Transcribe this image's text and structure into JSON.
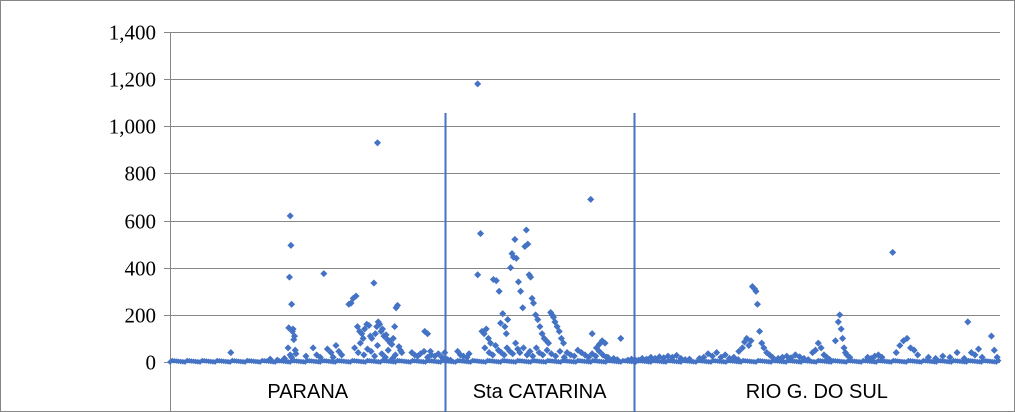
{
  "chart_data": {
    "type": "scatter",
    "title": "",
    "xlabel": "",
    "ylabel": "",
    "ylim": [
      0,
      1400
    ],
    "y_ticks": [
      0,
      200,
      400,
      600,
      800,
      1000,
      1200,
      1400
    ],
    "y_tick_labels": [
      "0",
      "200",
      "400",
      "600",
      "800",
      "1,000",
      "1,200",
      "1,400"
    ],
    "grid": "horizontal",
    "legend": "none",
    "marker_color": "#4472C4",
    "divider_color": "#4472C4",
    "x_count": 1160,
    "regions": [
      {
        "label": "PARANA",
        "start": 0,
        "end": 385
      },
      {
        "label": "Sta CATARINA",
        "start": 385,
        "end": 648
      },
      {
        "label": "RIO G. DO SUL",
        "start": 648,
        "end": 1160
      }
    ],
    "dividers": [
      385,
      648
    ],
    "points": [
      [
        168,
        620
      ],
      [
        169,
        495
      ],
      [
        167,
        360
      ],
      [
        170,
        245
      ],
      [
        166,
        145
      ],
      [
        172,
        140
      ],
      [
        171,
        130
      ],
      [
        174,
        110
      ],
      [
        173,
        95
      ],
      [
        165,
        60
      ],
      [
        175,
        50
      ],
      [
        176,
        35
      ],
      [
        168,
        30
      ],
      [
        170,
        20
      ],
      [
        85,
        40
      ],
      [
        140,
        12
      ],
      [
        150,
        8
      ],
      [
        160,
        15
      ],
      [
        215,
        375
      ],
      [
        200,
        60
      ],
      [
        205,
        30
      ],
      [
        190,
        25
      ],
      [
        210,
        20
      ],
      [
        220,
        55
      ],
      [
        225,
        40
      ],
      [
        228,
        20
      ],
      [
        232,
        70
      ],
      [
        236,
        45
      ],
      [
        240,
        30
      ],
      [
        250,
        245
      ],
      [
        253,
        250
      ],
      [
        256,
        270
      ],
      [
        260,
        280
      ],
      [
        262,
        150
      ],
      [
        265,
        130
      ],
      [
        268,
        120
      ],
      [
        270,
        100
      ],
      [
        272,
        140
      ],
      [
        275,
        160
      ],
      [
        278,
        155
      ],
      [
        280,
        110
      ],
      [
        282,
        100
      ],
      [
        285,
        335
      ],
      [
        287,
        120
      ],
      [
        289,
        150
      ],
      [
        291,
        170
      ],
      [
        293,
        160
      ],
      [
        295,
        130
      ],
      [
        297,
        140
      ],
      [
        299,
        110
      ],
      [
        302,
        115
      ],
      [
        304,
        95
      ],
      [
        306,
        90
      ],
      [
        308,
        80
      ],
      [
        310,
        75
      ],
      [
        312,
        100
      ],
      [
        314,
        150
      ],
      [
        316,
        230
      ],
      [
        318,
        240
      ],
      [
        320,
        65
      ],
      [
        322,
        50
      ],
      [
        324,
        40
      ],
      [
        258,
        60
      ],
      [
        263,
        40
      ],
      [
        266,
        80
      ],
      [
        271,
        30
      ],
      [
        276,
        55
      ],
      [
        281,
        45
      ],
      [
        286,
        25
      ],
      [
        290,
        70
      ],
      [
        296,
        35
      ],
      [
        301,
        20
      ],
      [
        305,
        50
      ],
      [
        311,
        15
      ],
      [
        315,
        30
      ],
      [
        338,
        40
      ],
      [
        342,
        30
      ],
      [
        346,
        25
      ],
      [
        350,
        35
      ],
      [
        355,
        45
      ],
      [
        360,
        20
      ],
      [
        365,
        30
      ],
      [
        370,
        25
      ],
      [
        375,
        35
      ],
      [
        380,
        20
      ],
      [
        384,
        40
      ],
      [
        290,
        930
      ],
      [
        356,
        130
      ],
      [
        360,
        120
      ],
      [
        364,
        45
      ],
      [
        402,
        45
      ],
      [
        406,
        30
      ],
      [
        410,
        25
      ],
      [
        415,
        20
      ],
      [
        418,
        35
      ],
      [
        385,
        15
      ],
      [
        388,
        10
      ],
      [
        392,
        8
      ],
      [
        430,
        1180
      ],
      [
        430,
        370
      ],
      [
        434,
        545
      ],
      [
        436,
        130
      ],
      [
        439,
        120
      ],
      [
        442,
        140
      ],
      [
        445,
        100
      ],
      [
        448,
        80
      ],
      [
        452,
        350
      ],
      [
        456,
        345
      ],
      [
        460,
        300
      ],
      [
        462,
        165
      ],
      [
        465,
        205
      ],
      [
        468,
        150
      ],
      [
        470,
        120
      ],
      [
        472,
        180
      ],
      [
        476,
        400
      ],
      [
        478,
        460
      ],
      [
        480,
        445
      ],
      [
        482,
        520
      ],
      [
        484,
        440
      ],
      [
        487,
        340
      ],
      [
        490,
        300
      ],
      [
        493,
        230
      ],
      [
        496,
        490
      ],
      [
        498,
        560
      ],
      [
        500,
        500
      ],
      [
        502,
        370
      ],
      [
        504,
        360
      ],
      [
        506,
        270
      ],
      [
        508,
        250
      ],
      [
        511,
        200
      ],
      [
        514,
        180
      ],
      [
        517,
        150
      ],
      [
        520,
        120
      ],
      [
        523,
        100
      ],
      [
        526,
        90
      ],
      [
        529,
        80
      ],
      [
        532,
        210
      ],
      [
        534,
        200
      ],
      [
        536,
        190
      ],
      [
        538,
        170
      ],
      [
        541,
        150
      ],
      [
        544,
        130
      ],
      [
        547,
        100
      ],
      [
        550,
        80
      ],
      [
        440,
        60
      ],
      [
        446,
        40
      ],
      [
        451,
        30
      ],
      [
        455,
        70
      ],
      [
        459,
        50
      ],
      [
        463,
        40
      ],
      [
        467,
        30
      ],
      [
        471,
        60
      ],
      [
        475,
        45
      ],
      [
        479,
        35
      ],
      [
        483,
        80
      ],
      [
        486,
        55
      ],
      [
        489,
        40
      ],
      [
        494,
        60
      ],
      [
        499,
        30
      ],
      [
        503,
        45
      ],
      [
        507,
        25
      ],
      [
        512,
        60
      ],
      [
        516,
        40
      ],
      [
        521,
        30
      ],
      [
        527,
        50
      ],
      [
        533,
        35
      ],
      [
        539,
        25
      ],
      [
        545,
        45
      ],
      [
        551,
        20
      ],
      [
        555,
        40
      ],
      [
        560,
        30
      ],
      [
        565,
        25
      ],
      [
        570,
        50
      ],
      [
        575,
        40
      ],
      [
        580,
        30
      ],
      [
        585,
        20
      ],
      [
        590,
        35
      ],
      [
        595,
        25
      ],
      [
        600,
        45
      ],
      [
        605,
        30
      ],
      [
        610,
        20
      ],
      [
        588,
        690
      ],
      [
        590,
        120
      ],
      [
        596,
        60
      ],
      [
        600,
        75
      ],
      [
        604,
        90
      ],
      [
        608,
        80
      ],
      [
        612,
        20
      ],
      [
        630,
        100
      ],
      [
        620,
        15
      ],
      [
        625,
        10
      ],
      [
        640,
        8
      ],
      [
        645,
        12
      ],
      [
        650,
        10
      ],
      [
        655,
        8
      ],
      [
        660,
        15
      ],
      [
        666,
        12
      ],
      [
        672,
        20
      ],
      [
        678,
        15
      ],
      [
        684,
        22
      ],
      [
        690,
        18
      ],
      [
        696,
        25
      ],
      [
        702,
        20
      ],
      [
        708,
        28
      ],
      [
        714,
        15
      ],
      [
        720,
        10
      ],
      [
        726,
        12
      ],
      [
        740,
        15
      ],
      [
        746,
        20
      ],
      [
        752,
        35
      ],
      [
        758,
        25
      ],
      [
        764,
        40
      ],
      [
        770,
        20
      ],
      [
        776,
        30
      ],
      [
        782,
        15
      ],
      [
        788,
        20
      ],
      [
        794,
        10
      ],
      [
        795,
        45
      ],
      [
        800,
        60
      ],
      [
        803,
        85
      ],
      [
        806,
        100
      ],
      [
        809,
        70
      ],
      [
        812,
        90
      ],
      [
        814,
        320
      ],
      [
        817,
        310
      ],
      [
        819,
        300
      ],
      [
        821,
        245
      ],
      [
        824,
        130
      ],
      [
        827,
        80
      ],
      [
        830,
        60
      ],
      [
        834,
        40
      ],
      [
        838,
        30
      ],
      [
        842,
        20
      ],
      [
        850,
        15
      ],
      [
        856,
        20
      ],
      [
        862,
        25
      ],
      [
        868,
        18
      ],
      [
        874,
        30
      ],
      [
        880,
        22
      ],
      [
        886,
        15
      ],
      [
        892,
        10
      ],
      [
        898,
        40
      ],
      [
        902,
        50
      ],
      [
        906,
        80
      ],
      [
        910,
        60
      ],
      [
        914,
        30
      ],
      [
        918,
        20
      ],
      [
        922,
        10
      ],
      [
        930,
        90
      ],
      [
        934,
        170
      ],
      [
        936,
        200
      ],
      [
        938,
        140
      ],
      [
        940,
        100
      ],
      [
        942,
        60
      ],
      [
        944,
        40
      ],
      [
        946,
        30
      ],
      [
        950,
        20
      ],
      [
        975,
        20
      ],
      [
        980,
        15
      ],
      [
        985,
        25
      ],
      [
        990,
        30
      ],
      [
        995,
        20
      ],
      [
        1010,
        465
      ],
      [
        1015,
        40
      ],
      [
        1020,
        70
      ],
      [
        1025,
        90
      ],
      [
        1030,
        100
      ],
      [
        1035,
        60
      ],
      [
        1040,
        50
      ],
      [
        1045,
        30
      ],
      [
        1060,
        20
      ],
      [
        1070,
        15
      ],
      [
        1080,
        25
      ],
      [
        1090,
        20
      ],
      [
        1100,
        40
      ],
      [
        1110,
        15
      ],
      [
        1115,
        170
      ],
      [
        1120,
        40
      ],
      [
        1125,
        30
      ],
      [
        1130,
        55
      ],
      [
        1135,
        20
      ],
      [
        1148,
        110
      ],
      [
        1152,
        50
      ],
      [
        1156,
        20
      ]
    ]
  }
}
